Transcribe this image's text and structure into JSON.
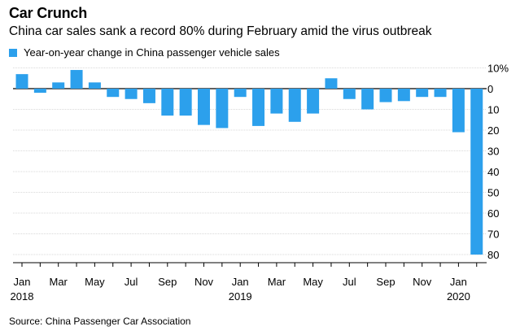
{
  "title": "Car Crunch",
  "subtitle": "China car sales sank a record 80% during February amid the virus outbreak",
  "legend_label": "Year-on-year change in China passenger vehicle sales",
  "source": "Source: China Passenger Car Association",
  "colors": {
    "bar": "#2ca0ec",
    "grid": "#d9d9d9",
    "axis": "#000000"
  },
  "chart_data": {
    "type": "bar",
    "title": "Car Crunch",
    "subtitle": "China car sales sank a record 80% during February amid the virus outbreak",
    "series_name": "Year-on-year change in China passenger vehicle sales",
    "categories": [
      "Jan 2018",
      "Feb 2018",
      "Mar 2018",
      "Apr 2018",
      "May 2018",
      "Jun 2018",
      "Jul 2018",
      "Aug 2018",
      "Sep 2018",
      "Oct 2018",
      "Nov 2018",
      "Dec 2018",
      "Jan 2019",
      "Feb 2019",
      "Mar 2019",
      "Apr 2019",
      "May 2019",
      "Jun 2019",
      "Jul 2019",
      "Aug 2019",
      "Sep 2019",
      "Oct 2019",
      "Nov 2019",
      "Dec 2019",
      "Jan 2020",
      "Feb 2020"
    ],
    "values": [
      7,
      -2,
      3,
      9,
      3,
      -4,
      -5,
      -7,
      -13,
      -13,
      -17.5,
      -19,
      -4,
      -18,
      -12,
      -16,
      -12,
      5,
      -5,
      -10,
      -6.5,
      -6,
      -4,
      -4,
      -21,
      -80
    ],
    "ylim": [
      -82,
      11
    ],
    "yticks": [
      10,
      0,
      -10,
      -20,
      -30,
      -40,
      -50,
      -60,
      -70,
      -80
    ],
    "ytick_labels": [
      "10%",
      "0",
      "10",
      "20",
      "30",
      "40",
      "50",
      "60",
      "70",
      "80"
    ],
    "xticks": [
      {
        "index": 0,
        "label": "Jan",
        "year": "2018"
      },
      {
        "index": 2,
        "label": "Mar",
        "year": ""
      },
      {
        "index": 4,
        "label": "May",
        "year": ""
      },
      {
        "index": 6,
        "label": "Jul",
        "year": ""
      },
      {
        "index": 8,
        "label": "Sep",
        "year": ""
      },
      {
        "index": 10,
        "label": "Nov",
        "year": ""
      },
      {
        "index": 12,
        "label": "Jan",
        "year": "2019"
      },
      {
        "index": 14,
        "label": "Mar",
        "year": ""
      },
      {
        "index": 16,
        "label": "May",
        "year": ""
      },
      {
        "index": 18,
        "label": "Jul",
        "year": ""
      },
      {
        "index": 20,
        "label": "Sep",
        "year": ""
      },
      {
        "index": 22,
        "label": "Nov",
        "year": ""
      },
      {
        "index": 24,
        "label": "Jan",
        "year": "2020"
      }
    ],
    "xlabel": "",
    "ylabel": "",
    "grid": true,
    "y_axis_position": "right"
  }
}
